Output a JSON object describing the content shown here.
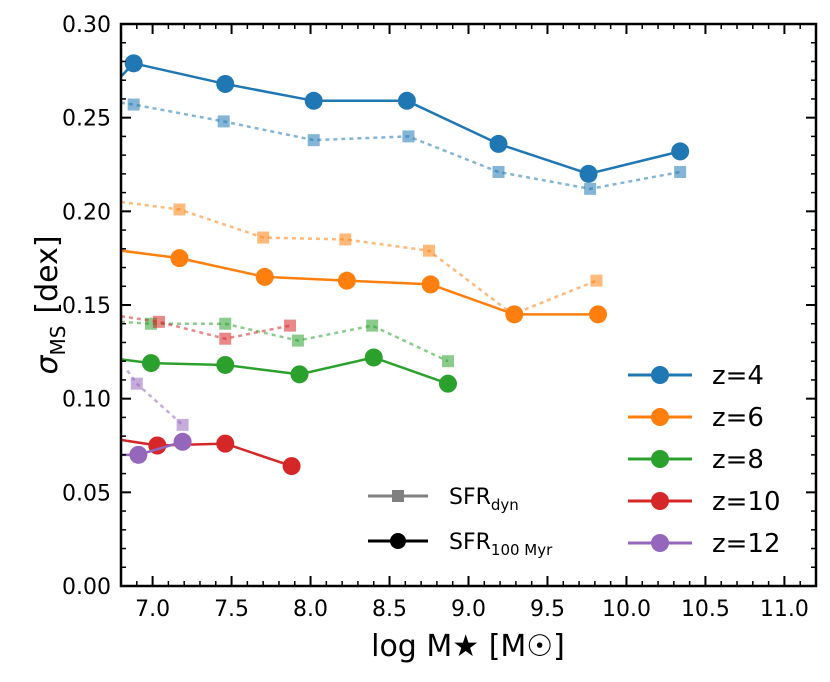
{
  "chart_data": {
    "type": "line",
    "xlabel": "log  M★  [M☉]",
    "ylabel_main": "σ",
    "ylabel_sub": "MS",
    "ylabel_unit": "[dex]",
    "xlim": [
      6.8,
      11.2
    ],
    "ylim": [
      0.0,
      0.3
    ],
    "xticks": [
      7.0,
      7.5,
      8.0,
      8.5,
      9.0,
      9.5,
      10.0,
      10.5,
      11.0
    ],
    "xtick_labels": [
      "7.0",
      "7.5",
      "8.0",
      "8.5",
      "9.0",
      "9.5",
      "10.0",
      "10.5",
      "11.0"
    ],
    "yticks": [
      0.0,
      0.05,
      0.1,
      0.15,
      0.2,
      0.25,
      0.3
    ],
    "ytick_labels": [
      "0.00",
      "0.05",
      "0.10",
      "0.15",
      "0.20",
      "0.25",
      "0.30"
    ],
    "series": [
      {
        "name": "z=4",
        "color": "#1f77b4",
        "sfr100": {
          "line_start": [
            6.8,
            0.272
          ],
          "x": [
            6.88,
            7.46,
            8.02,
            8.61,
            9.19,
            9.76,
            10.34
          ],
          "y": [
            0.279,
            0.268,
            0.259,
            0.259,
            0.236,
            0.22,
            0.232
          ]
        },
        "sfrdyn": {
          "line_start": [
            6.8,
            0.258
          ],
          "x": [
            6.88,
            7.45,
            8.02,
            8.62,
            9.19,
            9.77,
            10.34
          ],
          "y": [
            0.257,
            0.248,
            0.238,
            0.24,
            0.221,
            0.212,
            0.221
          ]
        }
      },
      {
        "name": "z=6",
        "color": "#ff7f0e",
        "sfr100": {
          "line_start": [
            6.8,
            0.179
          ],
          "x": [
            7.17,
            7.71,
            8.23,
            8.76,
            9.29,
            9.82
          ],
          "y": [
            0.175,
            0.165,
            0.163,
            0.161,
            0.145,
            0.145
          ]
        },
        "sfrdyn": {
          "line_start": [
            6.8,
            0.205
          ],
          "x": [
            7.17,
            7.7,
            8.22,
            8.75,
            9.28,
            9.81
          ],
          "y": [
            0.201,
            0.186,
            0.185,
            0.179,
            0.145,
            0.163
          ]
        }
      },
      {
        "name": "z=8",
        "color": "#2ca02c",
        "sfr100": {
          "line_start": [
            6.8,
            0.121
          ],
          "x": [
            6.99,
            7.46,
            7.93,
            8.4,
            8.87
          ],
          "y": [
            0.119,
            0.118,
            0.113,
            0.122,
            0.108
          ]
        },
        "sfrdyn": {
          "line_start": [
            6.8,
            0.141
          ],
          "x": [
            6.99,
            7.46,
            7.92,
            8.39,
            8.87
          ],
          "y": [
            0.14,
            0.14,
            0.131,
            0.139,
            0.12
          ]
        }
      },
      {
        "name": "z=10",
        "color": "#d62728",
        "sfr100": {
          "line_start": [
            6.8,
            0.078
          ],
          "x": [
            7.03,
            7.46,
            7.88
          ],
          "y": [
            0.075,
            0.076,
            0.064
          ]
        },
        "sfrdyn": {
          "line_start": [
            6.8,
            0.144
          ],
          "x": [
            7.04,
            7.46,
            7.87
          ],
          "y": [
            0.141,
            0.132,
            0.139
          ]
        }
      },
      {
        "name": "z=12",
        "color": "#9467bd",
        "sfr100": {
          "line_start": [
            6.8,
            0.07
          ],
          "x": [
            6.91,
            7.19
          ],
          "y": [
            0.07,
            0.077
          ]
        },
        "sfrdyn": {
          "line_start": [
            6.84,
            0.115
          ],
          "x": [
            6.9,
            7.19
          ],
          "y": [
            0.108,
            0.086
          ]
        }
      }
    ],
    "legend": {
      "placement": "lower-right",
      "entries": [
        "z=4",
        "z=6",
        "z=8",
        "z=10",
        "z=12"
      ]
    },
    "style_legend": {
      "placement": "lower-center",
      "dyn_label_main": "SFR",
      "dyn_label_sub": "dyn",
      "myr_label_main": "SFR",
      "myr_label_sub": "100 Myr",
      "dyn_color": "#808080",
      "myr_color": "#000000"
    }
  }
}
